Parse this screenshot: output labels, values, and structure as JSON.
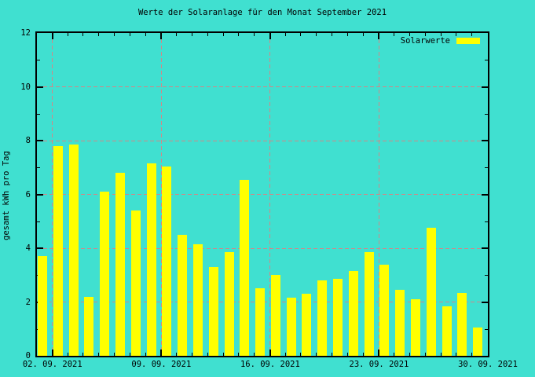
{
  "title": "Werte der Solaranlage für den Monat September 2021",
  "y_axis_label": "gesamt kWh pro Tag",
  "legend": {
    "label": "Solarwerte"
  },
  "colors": {
    "background": "#40E0D0",
    "bar": "#FFFF00",
    "grid": "#D08888",
    "axis": "#000000",
    "text": "#000000"
  },
  "chart_data": {
    "type": "bar",
    "title": "Werte der Solaranlage für den Monat September 2021",
    "ylabel": "gesamt kWh pro Tag",
    "xlabel": "",
    "grid": true,
    "legend_position": "top-right",
    "legend_entries": [
      "Solarwerte"
    ],
    "ylim": [
      0,
      12
    ],
    "yticks": [
      0,
      2,
      4,
      6,
      8,
      10,
      12
    ],
    "x_axis_days": {
      "first": 1,
      "last": 30
    },
    "xtick_days": [
      2,
      9,
      16,
      23,
      30
    ],
    "xtick_labels": [
      "02. 09. 2021",
      "09. 09. 2021",
      "16. 09. 2021",
      "23. 09. 2021",
      "30. 09. 2021"
    ],
    "series": [
      {
        "name": "Solarwerte",
        "unit": "kWh pro Tag",
        "days": [
          1,
          2,
          3,
          4,
          5,
          6,
          7,
          8,
          9,
          10,
          11,
          12,
          13,
          14,
          15,
          16,
          17,
          18,
          19,
          20,
          21,
          22,
          23,
          24,
          25,
          26,
          27,
          28,
          29
        ],
        "values": [
          3.7,
          7.8,
          7.85,
          2.2,
          6.1,
          6.8,
          5.4,
          7.15,
          7.05,
          4.5,
          4.15,
          3.3,
          3.85,
          6.55,
          2.5,
          3.0,
          2.15,
          2.3,
          2.8,
          2.85,
          3.15,
          3.85,
          3.4,
          2.45,
          2.1,
          4.75,
          1.85,
          2.35,
          1.05
        ]
      }
    ]
  }
}
